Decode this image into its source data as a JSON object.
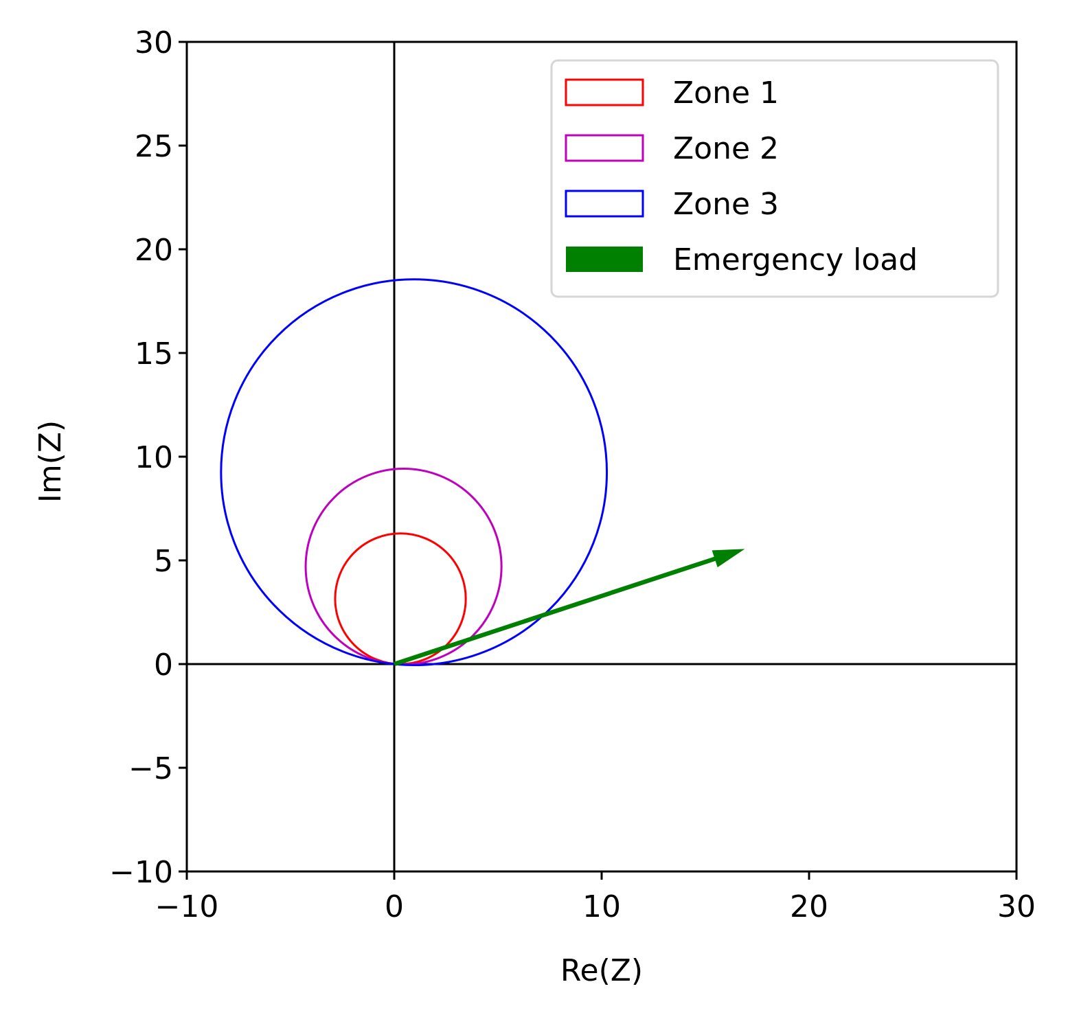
{
  "chart_data": {
    "type": "scatter",
    "title": "",
    "xlabel": "Re(Z)",
    "ylabel": "Im(Z)",
    "xlim": [
      -10,
      30
    ],
    "ylim": [
      -10,
      30
    ],
    "xticks": [
      -10,
      0,
      10,
      20,
      30
    ],
    "xtick_labels": [
      "−10",
      "0",
      "10",
      "20",
      "30"
    ],
    "yticks": [
      -10,
      -5,
      0,
      5,
      10,
      15,
      20,
      25,
      30
    ],
    "ytick_labels": [
      "−10",
      "−5",
      "0",
      "5",
      "10",
      "15",
      "20",
      "25",
      "30"
    ],
    "grid": false,
    "legend_position": "top-right",
    "series": [
      {
        "name": "Zone 1",
        "kind": "circle",
        "center": [
          0.3,
          3.15
        ],
        "radius": 3.15,
        "color": "#ff0000"
      },
      {
        "name": "Zone 2",
        "kind": "circle",
        "center": [
          0.45,
          4.7
        ],
        "radius": 4.72,
        "color": "#bf00bf"
      },
      {
        "name": "Zone 3",
        "kind": "circle",
        "center": [
          0.95,
          9.25
        ],
        "radius": 9.3,
        "color": "#0000ff"
      },
      {
        "name": "Emergency load",
        "kind": "arrow",
        "start": [
          0,
          0
        ],
        "end": [
          16.9,
          5.55
        ],
        "color": "#008000"
      }
    ],
    "reference_lines": {
      "x": [
        0
      ],
      "y": [
        0
      ]
    }
  }
}
